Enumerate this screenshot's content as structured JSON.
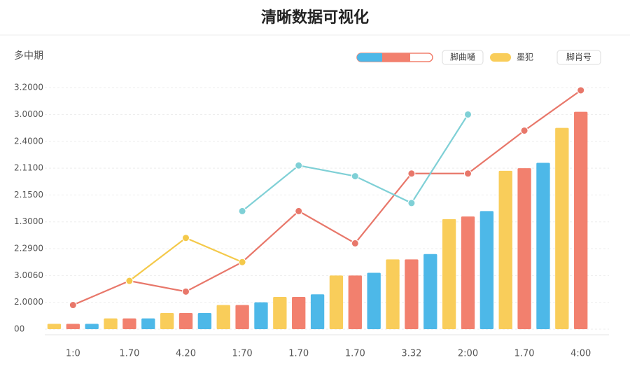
{
  "chart_data": {
    "type": "bar-line",
    "title": "清晰数据可视化",
    "y_label": "多中期",
    "legend_labels": [
      "脚曲嗵",
      "墨犯",
      "脚肖号"
    ],
    "categories": [
      "1:0",
      "1.70",
      "4.20",
      "1:70",
      "1.70",
      "1.70",
      "3.32",
      "2:00",
      "1.70",
      "4:00"
    ],
    "ylim": [
      0,
      9.5
    ],
    "yticks": [
      {
        "value": 0,
        "label": "00"
      },
      {
        "value": 1,
        "label": "2.0000"
      },
      {
        "value": 2,
        "label": "3.0060"
      },
      {
        "value": 3,
        "label": "2.2900"
      },
      {
        "value": 4,
        "label": "1.3000"
      },
      {
        "value": 5,
        "label": "2.1500"
      },
      {
        "value": 6,
        "label": "2.1100"
      },
      {
        "value": 7,
        "label": "2.4000"
      },
      {
        "value": 8,
        "label": "3.0000"
      },
      {
        "value": 9,
        "label": "3.2000"
      }
    ],
    "grid": true,
    "bar_series": [
      {
        "color": "#f9cd5a",
        "values": [
          0.2,
          0.4,
          0.6,
          0.9,
          1.2,
          2.0,
          2.6,
          4.1,
          5.9,
          7.5
        ]
      },
      {
        "color": "#f2806e",
        "values": [
          0.2,
          0.4,
          0.6,
          0.9,
          1.2,
          2.0,
          2.6,
          4.2,
          6.0,
          8.1
        ]
      },
      {
        "color": "#4db8e8",
        "values": [
          0.2,
          0.4,
          0.6,
          1.0,
          1.3,
          2.1,
          2.8,
          4.4,
          6.2,
          null
        ]
      }
    ],
    "line_series": [
      {
        "color": "#e8776a",
        "values": [
          0.9,
          1.8,
          1.4,
          2.5,
          4.4,
          3.2,
          5.8,
          5.8,
          7.4,
          8.9
        ]
      },
      {
        "color": "#7fd0d6",
        "values": [
          null,
          null,
          null,
          4.4,
          6.1,
          5.7,
          4.7,
          8.0,
          null,
          null
        ]
      },
      {
        "color": "#f4c94a",
        "values": [
          null,
          1.8,
          3.4,
          2.5,
          null,
          null,
          null,
          null,
          null,
          null
        ]
      }
    ]
  }
}
